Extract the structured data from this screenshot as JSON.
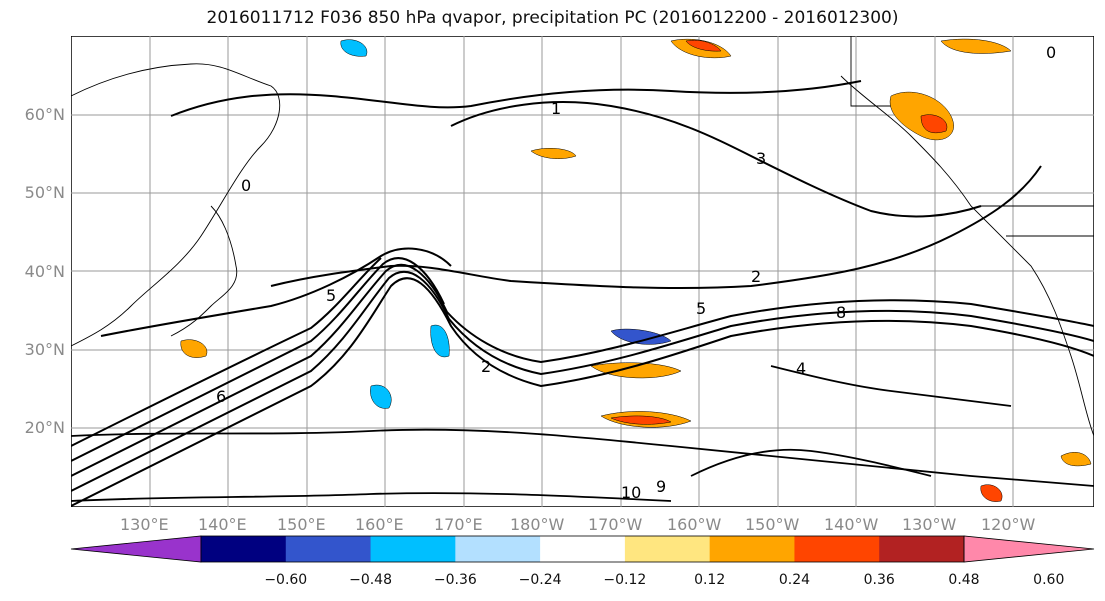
{
  "title": "2016011712 F036 850 hPa qvapor, precipitation PC (2016012200 - 2016012300)",
  "map": {
    "lon_labels": [
      "130°E",
      "140°E",
      "150°E",
      "160°E",
      "170°E",
      "180°W",
      "170°W",
      "160°W",
      "150°W",
      "140°W",
      "130°W",
      "120°W"
    ],
    "lat_labels": [
      "60°N",
      "50°N",
      "40°N",
      "30°N",
      "20°N"
    ],
    "contour_labels": [
      "0",
      "1",
      "3",
      "2",
      "5",
      "8",
      "4",
      "6",
      "9",
      "10"
    ]
  },
  "colorbar": {
    "tick_labels": [
      "−0.60",
      "−0.48",
      "−0.36",
      "−0.24",
      "−0.12",
      "0.12",
      "0.24",
      "0.36",
      "0.48",
      "0.60"
    ],
    "colors": [
      "#9933cc",
      "#000080",
      "#3355cc",
      "#00bfff",
      "#b3e0ff",
      "#ffffff",
      "#ffe680",
      "#ffa500",
      "#ff4500",
      "#b22222",
      "#ff88aa"
    ]
  }
}
